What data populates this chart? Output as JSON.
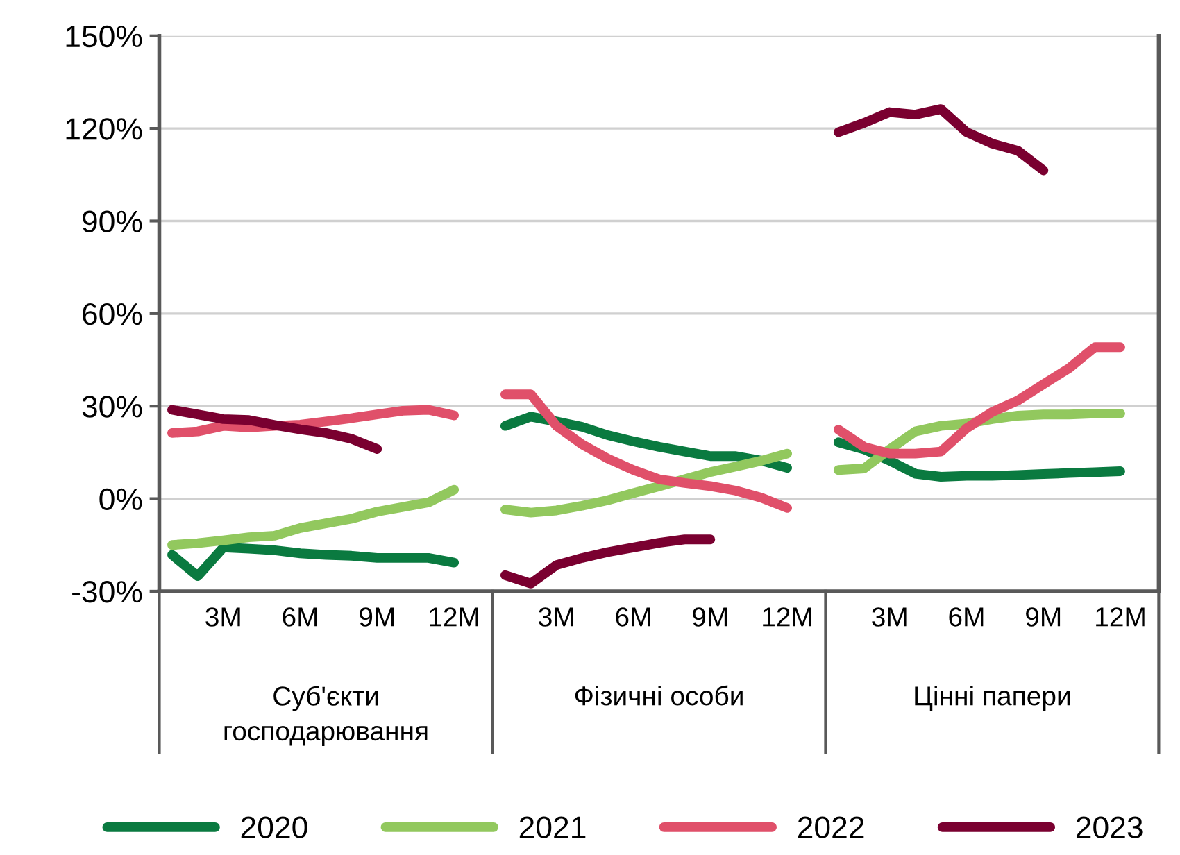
{
  "chart_data": {
    "type": "line",
    "categories": [
      null,
      null,
      "3M",
      null,
      null,
      "6M",
      null,
      null,
      "9M",
      null,
      null,
      "12M",
      null,
      null,
      null,
      "3M",
      null,
      null,
      "6M",
      null,
      null,
      "9M",
      null,
      null,
      "12M",
      null,
      null,
      null,
      "3M",
      null,
      null,
      "6M",
      null,
      null,
      "9M",
      null,
      null,
      "12M",
      null
    ],
    "series": [
      {
        "name": "2020",
        "color": "#0a7a40",
        "values": [
          -18.2,
          -25.1,
          -15.8,
          -16.2,
          -16.7,
          -17.7,
          -18.2,
          -18.5,
          -19.2,
          -19.2,
          -19.2,
          -20.7,
          null,
          23.6,
          26.6,
          25.0,
          23.3,
          20.6,
          18.6,
          16.8,
          15.3,
          13.8,
          13.8,
          12.3,
          10.0,
          null,
          18.3,
          16.0,
          12.3,
          8.1,
          7.1,
          7.4,
          7.4,
          7.7,
          8.0,
          8.3,
          8.6,
          8.9,
          null
        ]
      },
      {
        "name": "2021",
        "color": "#92c85e",
        "values": [
          -15.0,
          -14.4,
          -13.5,
          -12.5,
          -12.0,
          -9.5,
          -8.0,
          -6.5,
          -4.2,
          -2.7,
          -1.2,
          2.9,
          null,
          -3.5,
          -4.5,
          -3.8,
          -2.3,
          -0.5,
          1.8,
          4.0,
          6.3,
          8.6,
          10.4,
          12.3,
          14.6,
          null,
          9.3,
          9.8,
          16.0,
          21.8,
          23.6,
          24.3,
          25.8,
          26.9,
          27.3,
          27.3,
          27.6,
          27.6,
          null
        ]
      },
      {
        "name": "2022",
        "color": "#e0506a",
        "values": [
          21.3,
          21.8,
          23.6,
          23.1,
          23.6,
          24.0,
          25.0,
          26.1,
          27.3,
          28.5,
          28.8,
          27.0,
          null,
          33.8,
          33.8,
          23.6,
          17.6,
          13.0,
          9.3,
          6.3,
          5.1,
          4.1,
          2.6,
          0.3,
          -3.0,
          null,
          22.4,
          16.8,
          14.6,
          14.6,
          15.3,
          22.8,
          28.1,
          31.8,
          37.1,
          42.3,
          49.1,
          49.1,
          null
        ]
      },
      {
        "name": "2023",
        "color": "#7a0030",
        "values": [
          28.8,
          27.3,
          25.8,
          25.5,
          23.9,
          22.5,
          21.3,
          19.4,
          16.1,
          null,
          null,
          null,
          null,
          -24.8,
          -27.5,
          -21.5,
          -19.2,
          -17.3,
          -15.8,
          -14.3,
          -13.2,
          -13.2,
          null,
          null,
          null,
          null,
          118.8,
          121.8,
          125.3,
          124.5,
          126.3,
          118.8,
          115.1,
          112.8,
          106.4,
          null,
          null,
          null,
          null
        ]
      }
    ],
    "ylim": [
      -30,
      150
    ],
    "yticks": [
      {
        "value": -30,
        "label": "-30%"
      },
      {
        "value": 0,
        "label": "0%"
      },
      {
        "value": 30,
        "label": "30%"
      },
      {
        "value": 60,
        "label": "60%"
      },
      {
        "value": 90,
        "label": "90%"
      },
      {
        "value": 120,
        "label": "120%"
      },
      {
        "value": 150,
        "label": "150%"
      }
    ],
    "grid": "y",
    "legend": "bottom",
    "marker": "none",
    "line_style": "solid",
    "annotations": [
      "Суб'єкти\nгосподарювання",
      "Фізичні особи",
      "Цінні папери"
    ]
  }
}
